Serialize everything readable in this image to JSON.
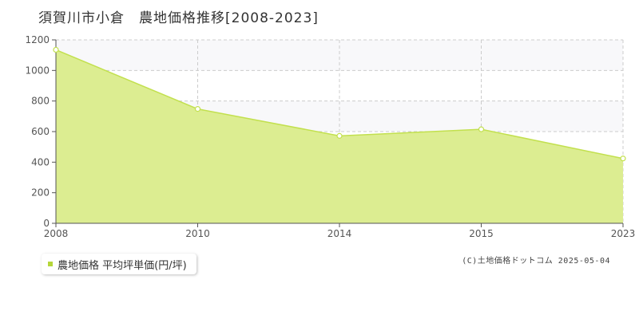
{
  "title": "須賀川市小倉　農地価格推移[2008-2023]",
  "legend": {
    "label": "農地価格 平均坪単価(円/坪)"
  },
  "copyright": "(C)土地価格ドットコム 2025-05-04",
  "colors": {
    "fill": "#dced91",
    "line": "#c2e04e",
    "marker_fill": "#ffffff",
    "grid": "#cccccc",
    "band": "#f8f8fa",
    "legend_swatch": "#b5d63a"
  },
  "chart_data": {
    "type": "area",
    "categories": [
      "2008",
      "2010",
      "2014",
      "2015",
      "2023"
    ],
    "series": [
      {
        "name": "農地価格 平均坪単価(円/坪)",
        "values": [
          1135,
          748,
          572,
          615,
          424
        ]
      }
    ],
    "ylim": [
      0,
      1200
    ],
    "yticks": [
      0,
      200,
      400,
      600,
      800,
      1000,
      1200
    ],
    "grid": true,
    "legend_position": "bottom-left"
  }
}
